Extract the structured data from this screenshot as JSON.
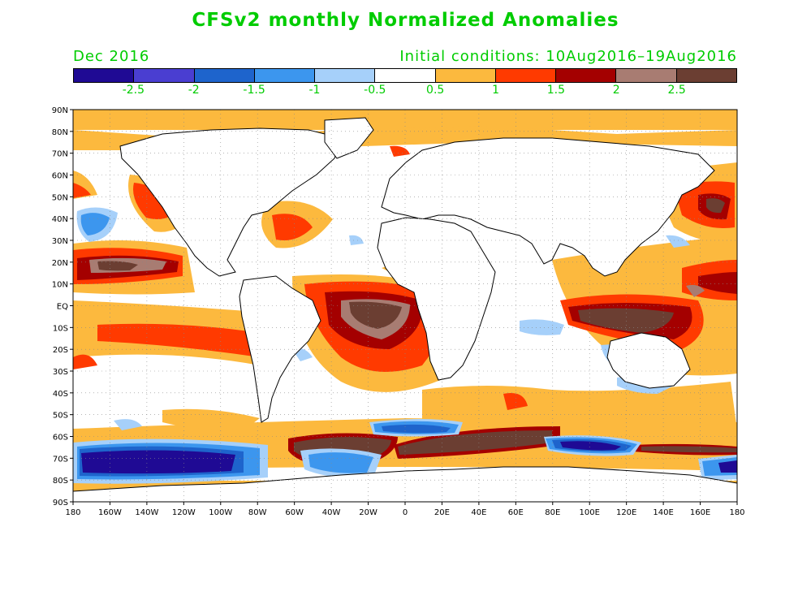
{
  "title": "CFSv2 monthly Normalized Anomalies",
  "valid_month": "Dec 2016",
  "initial_conditions": "Initial conditions: 10Aug2016–19Aug2016",
  "colorbar": {
    "colors": [
      "#1f0a94",
      "#4a3ed1",
      "#1e64cc",
      "#3c96ee",
      "#a6d0fa",
      "#ffffff",
      "#fcb93e",
      "#ff3a00",
      "#a40000",
      "#a87c72",
      "#6b3e32"
    ],
    "labels": [
      "-2.5",
      "-2",
      "-1.5",
      "-1",
      "-0.5",
      "0.5",
      "1",
      "1.5",
      "2",
      "2.5"
    ]
  },
  "lat_labels": [
    "90N",
    "80N",
    "70N",
    "60N",
    "50N",
    "40N",
    "30N",
    "20N",
    "10N",
    "EQ",
    "10S",
    "20S",
    "30S",
    "40S",
    "50S",
    "60S",
    "70S",
    "80S",
    "90S"
  ],
  "lon_labels": [
    "180",
    "160W",
    "140W",
    "120W",
    "100W",
    "80W",
    "60W",
    "40W",
    "20W",
    "0",
    "20E",
    "40E",
    "60E",
    "80E",
    "100E",
    "120E",
    "140E",
    "160E",
    "180"
  ],
  "colors": {
    "text": "#00cc00",
    "ocean": "#ffffff",
    "coast": "#000000"
  }
}
